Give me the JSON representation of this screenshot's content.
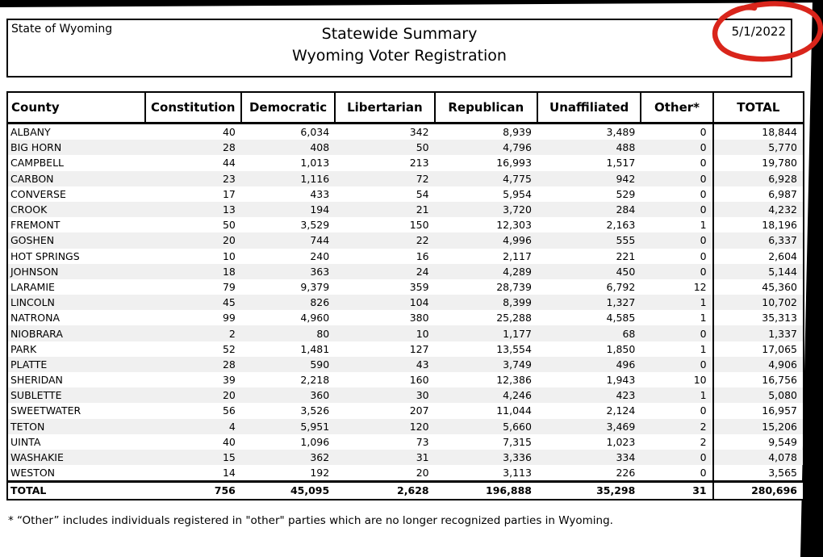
{
  "header": {
    "state_label": "State of Wyoming",
    "title_line1": "Statewide Summary",
    "title_line2": "Wyoming Voter Registration",
    "date": "5/1/2022"
  },
  "annotation": {
    "shape": "hand-drawn-red-circle-around-date",
    "color": "#d9251b"
  },
  "table": {
    "columns": [
      "County",
      "Constitution",
      "Democratic",
      "Libertarian",
      "Republican",
      "Unaffiliated",
      "Other*",
      "TOTAL"
    ],
    "rows": [
      [
        "ALBANY",
        "40",
        "6,034",
        "342",
        "8,939",
        "3,489",
        "0",
        "18,844"
      ],
      [
        "BIG HORN",
        "28",
        "408",
        "50",
        "4,796",
        "488",
        "0",
        "5,770"
      ],
      [
        "CAMPBELL",
        "44",
        "1,013",
        "213",
        "16,993",
        "1,517",
        "0",
        "19,780"
      ],
      [
        "CARBON",
        "23",
        "1,116",
        "72",
        "4,775",
        "942",
        "0",
        "6,928"
      ],
      [
        "CONVERSE",
        "17",
        "433",
        "54",
        "5,954",
        "529",
        "0",
        "6,987"
      ],
      [
        "CROOK",
        "13",
        "194",
        "21",
        "3,720",
        "284",
        "0",
        "4,232"
      ],
      [
        "FREMONT",
        "50",
        "3,529",
        "150",
        "12,303",
        "2,163",
        "1",
        "18,196"
      ],
      [
        "GOSHEN",
        "20",
        "744",
        "22",
        "4,996",
        "555",
        "0",
        "6,337"
      ],
      [
        "HOT SPRINGS",
        "10",
        "240",
        "16",
        "2,117",
        "221",
        "0",
        "2,604"
      ],
      [
        "JOHNSON",
        "18",
        "363",
        "24",
        "4,289",
        "450",
        "0",
        "5,144"
      ],
      [
        "LARAMIE",
        "79",
        "9,379",
        "359",
        "28,739",
        "6,792",
        "12",
        "45,360"
      ],
      [
        "LINCOLN",
        "45",
        "826",
        "104",
        "8,399",
        "1,327",
        "1",
        "10,702"
      ],
      [
        "NATRONA",
        "99",
        "4,960",
        "380",
        "25,288",
        "4,585",
        "1",
        "35,313"
      ],
      [
        "NIOBRARA",
        "2",
        "80",
        "10",
        "1,177",
        "68",
        "0",
        "1,337"
      ],
      [
        "PARK",
        "52",
        "1,481",
        "127",
        "13,554",
        "1,850",
        "1",
        "17,065"
      ],
      [
        "PLATTE",
        "28",
        "590",
        "43",
        "3,749",
        "496",
        "0",
        "4,906"
      ],
      [
        "SHERIDAN",
        "39",
        "2,218",
        "160",
        "12,386",
        "1,943",
        "10",
        "16,756"
      ],
      [
        "SUBLETTE",
        "20",
        "360",
        "30",
        "4,246",
        "423",
        "1",
        "5,080"
      ],
      [
        "SWEETWATER",
        "56",
        "3,526",
        "207",
        "11,044",
        "2,124",
        "0",
        "16,957"
      ],
      [
        "TETON",
        "4",
        "5,951",
        "120",
        "5,660",
        "3,469",
        "2",
        "15,206"
      ],
      [
        "UINTA",
        "40",
        "1,096",
        "73",
        "7,315",
        "1,023",
        "2",
        "9,549"
      ],
      [
        "WASHAKIE",
        "15",
        "362",
        "31",
        "3,336",
        "334",
        "0",
        "4,078"
      ],
      [
        "WESTON",
        "14",
        "192",
        "20",
        "3,113",
        "226",
        "0",
        "3,565"
      ]
    ],
    "total_row": [
      "TOTAL",
      "756",
      "45,095",
      "2,628",
      "196,888",
      "35,298",
      "31",
      "280,696"
    ]
  },
  "footnote": "* “Other” includes individuals registered in \"other\" parties which are no longer recognized parties in Wyoming."
}
